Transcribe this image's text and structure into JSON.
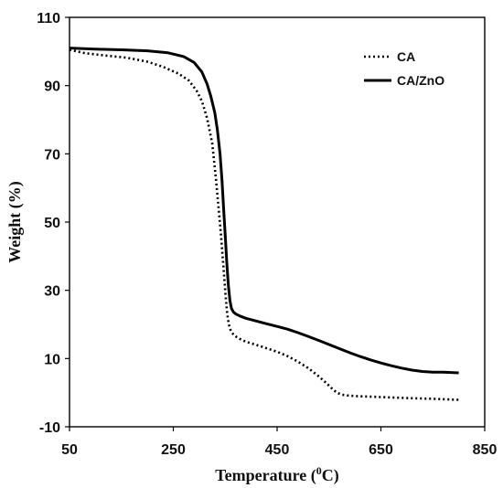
{
  "chart_data": {
    "type": "line",
    "title": "",
    "xlabel": {
      "pre": "Temperature (",
      "sup": "0",
      "post": "C)"
    },
    "ylabel": "Weight (%)",
    "xlim": [
      50,
      850
    ],
    "ylim": [
      -10,
      110
    ],
    "xticks": [
      50,
      250,
      450,
      650,
      850
    ],
    "yticks": [
      -10,
      10,
      30,
      50,
      70,
      90,
      110
    ],
    "grid": false,
    "legend_position": "top-right",
    "series": [
      {
        "name": "CA",
        "color": "#000000",
        "style": "dotted",
        "x": [
          50,
          80,
          120,
          160,
          200,
          230,
          260,
          280,
          295,
          305,
          315,
          325,
          332,
          338,
          342,
          345,
          348,
          351,
          354,
          357,
          360,
          363,
          367,
          372,
          380,
          390,
          410,
          430,
          450,
          470,
          490,
          510,
          530,
          545,
          555,
          565,
          575,
          585,
          600,
          650,
          700,
          750,
          800
        ],
        "y": [
          100.5,
          99.5,
          98.8,
          98.2,
          97,
          95.5,
          93.5,
          91.5,
          88.5,
          85.5,
          80.5,
          73,
          63,
          53,
          46,
          40,
          34,
          28,
          23,
          20,
          18.5,
          17.6,
          16.9,
          16.3,
          15.6,
          14.9,
          14,
          13,
          12,
          10.7,
          9.1,
          7.2,
          4.8,
          2.8,
          1.3,
          0,
          -0.6,
          -0.8,
          -1,
          -1.3,
          -1.6,
          -1.8,
          -2.1
        ]
      },
      {
        "name": "CA/ZnO",
        "color": "#000000",
        "style": "solid",
        "x": [
          50,
          100,
          150,
          200,
          240,
          270,
          290,
          305,
          315,
          322,
          330,
          335,
          340,
          344,
          347,
          350,
          353,
          356,
          359,
          362,
          366,
          371,
          378,
          390,
          410,
          430,
          450,
          470,
          490,
          510,
          530,
          550,
          570,
          590,
          610,
          630,
          650,
          670,
          690,
          710,
          730,
          750,
          770,
          800
        ],
        "y": [
          101,
          100.7,
          100.5,
          100.2,
          99.6,
          98.5,
          96.8,
          94,
          90.5,
          87,
          82,
          77,
          70,
          62,
          54,
          46,
          38,
          31.5,
          27,
          24.7,
          23.6,
          23,
          22.5,
          21.8,
          21,
          20.2,
          19.4,
          18.6,
          17.6,
          16.5,
          15.3,
          14.1,
          12.9,
          11.7,
          10.6,
          9.6,
          8.7,
          7.9,
          7.2,
          6.6,
          6.2,
          6,
          6,
          5.8
        ]
      }
    ]
  }
}
